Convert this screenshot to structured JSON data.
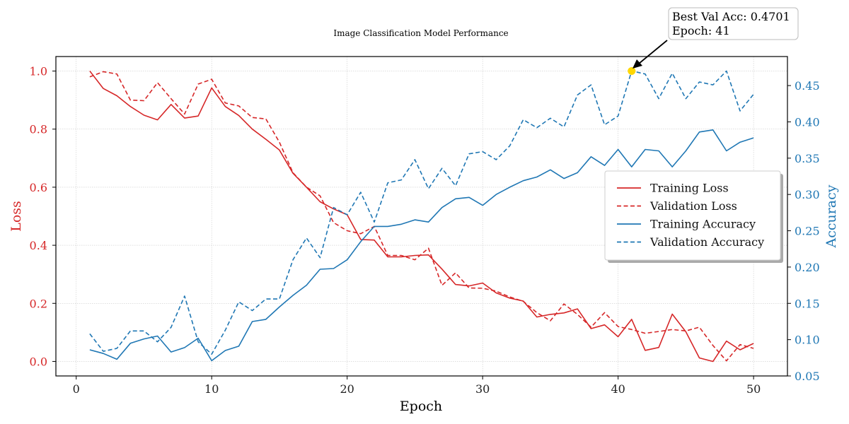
{
  "chart_data": {
    "type": "line",
    "title": "Image Classification Model Performance",
    "xlabel": "Epoch",
    "ylabel_left": "Loss",
    "ylabel_right": "Accuracy",
    "xlim": [
      -1.5,
      52.5
    ],
    "ylim_left": [
      -0.05,
      1.05
    ],
    "ylim_right": [
      0.05,
      0.49
    ],
    "x_ticks": [
      0,
      10,
      20,
      30,
      40,
      50
    ],
    "y_left_ticks": [
      0.0,
      0.2,
      0.4,
      0.6,
      0.8,
      1.0
    ],
    "y_right_ticks": [
      0.05,
      0.1,
      0.15,
      0.2,
      0.25,
      0.3,
      0.35,
      0.4,
      0.45
    ],
    "grid": true,
    "legend_placement": "center-right",
    "colors": {
      "loss": "#d62728",
      "accuracy": "#1f77b4",
      "highlight": "#FFD700"
    },
    "x": [
      1,
      2,
      3,
      4,
      5,
      6,
      7,
      8,
      9,
      10,
      11,
      12,
      13,
      14,
      15,
      16,
      17,
      18,
      19,
      20,
      21,
      22,
      23,
      24,
      25,
      26,
      27,
      28,
      29,
      30,
      31,
      32,
      33,
      34,
      35,
      36,
      37,
      38,
      39,
      40,
      41,
      42,
      43,
      44,
      45,
      46,
      47,
      48,
      49,
      50
    ],
    "series": [
      {
        "name": "Training Loss",
        "axis": "left",
        "color": "#d62728",
        "style": "solid",
        "values": [
          1.0,
          0.94,
          0.915,
          0.878,
          0.848,
          0.832,
          0.885,
          0.838,
          0.845,
          0.942,
          0.878,
          0.847,
          0.8,
          0.765,
          0.728,
          0.648,
          0.6,
          0.55,
          0.525,
          0.505,
          0.42,
          0.418,
          0.36,
          0.36,
          0.365,
          0.367,
          0.318,
          0.265,
          0.26,
          0.27,
          0.236,
          0.218,
          0.208,
          0.153,
          0.162,
          0.167,
          0.181,
          0.113,
          0.126,
          0.085,
          0.145,
          0.038,
          0.048,
          0.163,
          0.102,
          0.012,
          0.0,
          0.07,
          0.04,
          0.062
        ]
      },
      {
        "name": "Validation Loss",
        "axis": "left",
        "color": "#d62728",
        "style": "dashed",
        "values": [
          0.98,
          0.998,
          0.99,
          0.9,
          0.898,
          0.96,
          0.905,
          0.852,
          0.955,
          0.972,
          0.89,
          0.88,
          0.84,
          0.835,
          0.755,
          0.65,
          0.6,
          0.57,
          0.478,
          0.45,
          0.44,
          0.465,
          0.365,
          0.365,
          0.35,
          0.39,
          0.262,
          0.305,
          0.253,
          0.252,
          0.242,
          0.222,
          0.207,
          0.168,
          0.14,
          0.198,
          0.162,
          0.118,
          0.168,
          0.12,
          0.11,
          0.097,
          0.103,
          0.11,
          0.105,
          0.118,
          0.055,
          0.002,
          0.058,
          0.045
        ]
      },
      {
        "name": "Training Accuracy",
        "axis": "right",
        "color": "#1f77b4",
        "style": "solid",
        "values": [
          0.086,
          0.081,
          0.073,
          0.095,
          0.101,
          0.105,
          0.083,
          0.089,
          0.102,
          0.071,
          0.085,
          0.091,
          0.125,
          0.128,
          0.145,
          0.161,
          0.175,
          0.197,
          0.198,
          0.21,
          0.235,
          0.256,
          0.256,
          0.259,
          0.265,
          0.262,
          0.282,
          0.294,
          0.296,
          0.285,
          0.3,
          0.31,
          0.319,
          0.324,
          0.334,
          0.322,
          0.33,
          0.352,
          0.34,
          0.362,
          0.338,
          0.362,
          0.36,
          0.338,
          0.36,
          0.386,
          0.389,
          0.36,
          0.372,
          0.378
        ]
      },
      {
        "name": "Validation Accuracy",
        "axis": "right",
        "color": "#1f77b4",
        "style": "dashed",
        "values": [
          0.108,
          0.084,
          0.088,
          0.112,
          0.112,
          0.097,
          0.117,
          0.16,
          0.097,
          0.08,
          0.113,
          0.152,
          0.14,
          0.156,
          0.156,
          0.21,
          0.24,
          0.213,
          0.282,
          0.272,
          0.303,
          0.262,
          0.316,
          0.32,
          0.348,
          0.308,
          0.336,
          0.312,
          0.356,
          0.359,
          0.348,
          0.367,
          0.403,
          0.392,
          0.405,
          0.393,
          0.437,
          0.451,
          0.396,
          0.408,
          0.4701,
          0.466,
          0.432,
          0.467,
          0.432,
          0.455,
          0.451,
          0.47,
          0.415,
          0.438
        ]
      }
    ],
    "highlight": {
      "x": 41,
      "y": 0.4701,
      "axis": "right"
    },
    "annotation": {
      "line1": "Best Val Acc: 0.4701",
      "line2": "Epoch: 41"
    }
  }
}
